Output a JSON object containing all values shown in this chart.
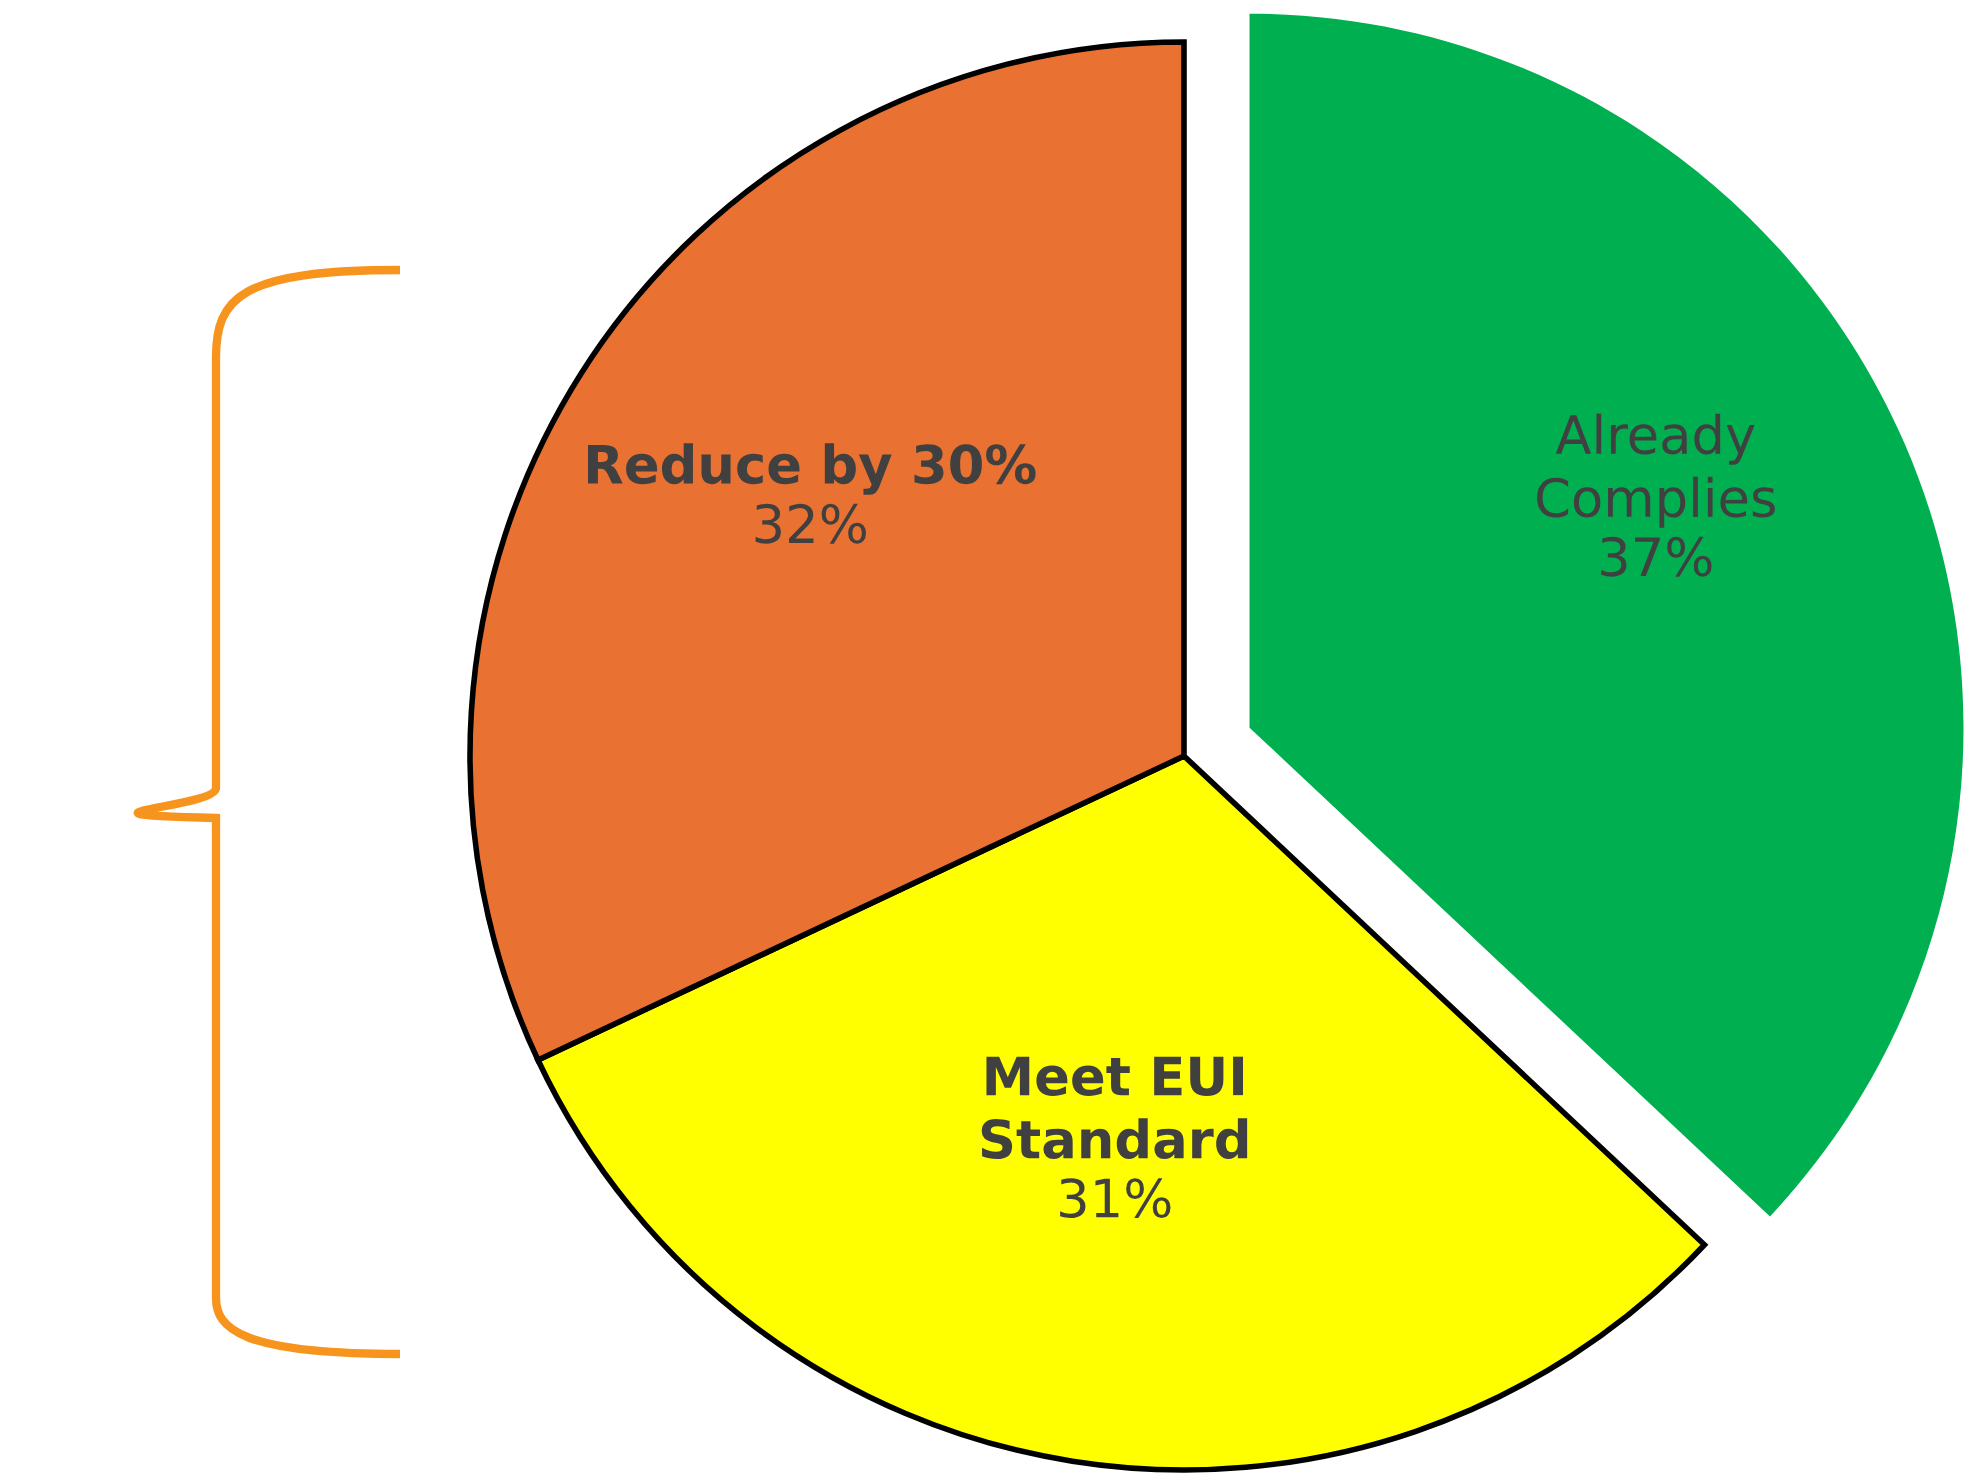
{
  "chart_data": {
    "type": "pie",
    "categories": [
      "Already Complies",
      "Meet EUI Standard",
      "Reduce by 30%"
    ],
    "values": [
      37,
      31,
      32
    ],
    "colors": [
      "#00b050",
      "#ffff00",
      "#e97132"
    ],
    "value_labels": [
      "37%",
      "31%",
      "32%"
    ],
    "legend": false
  }
}
